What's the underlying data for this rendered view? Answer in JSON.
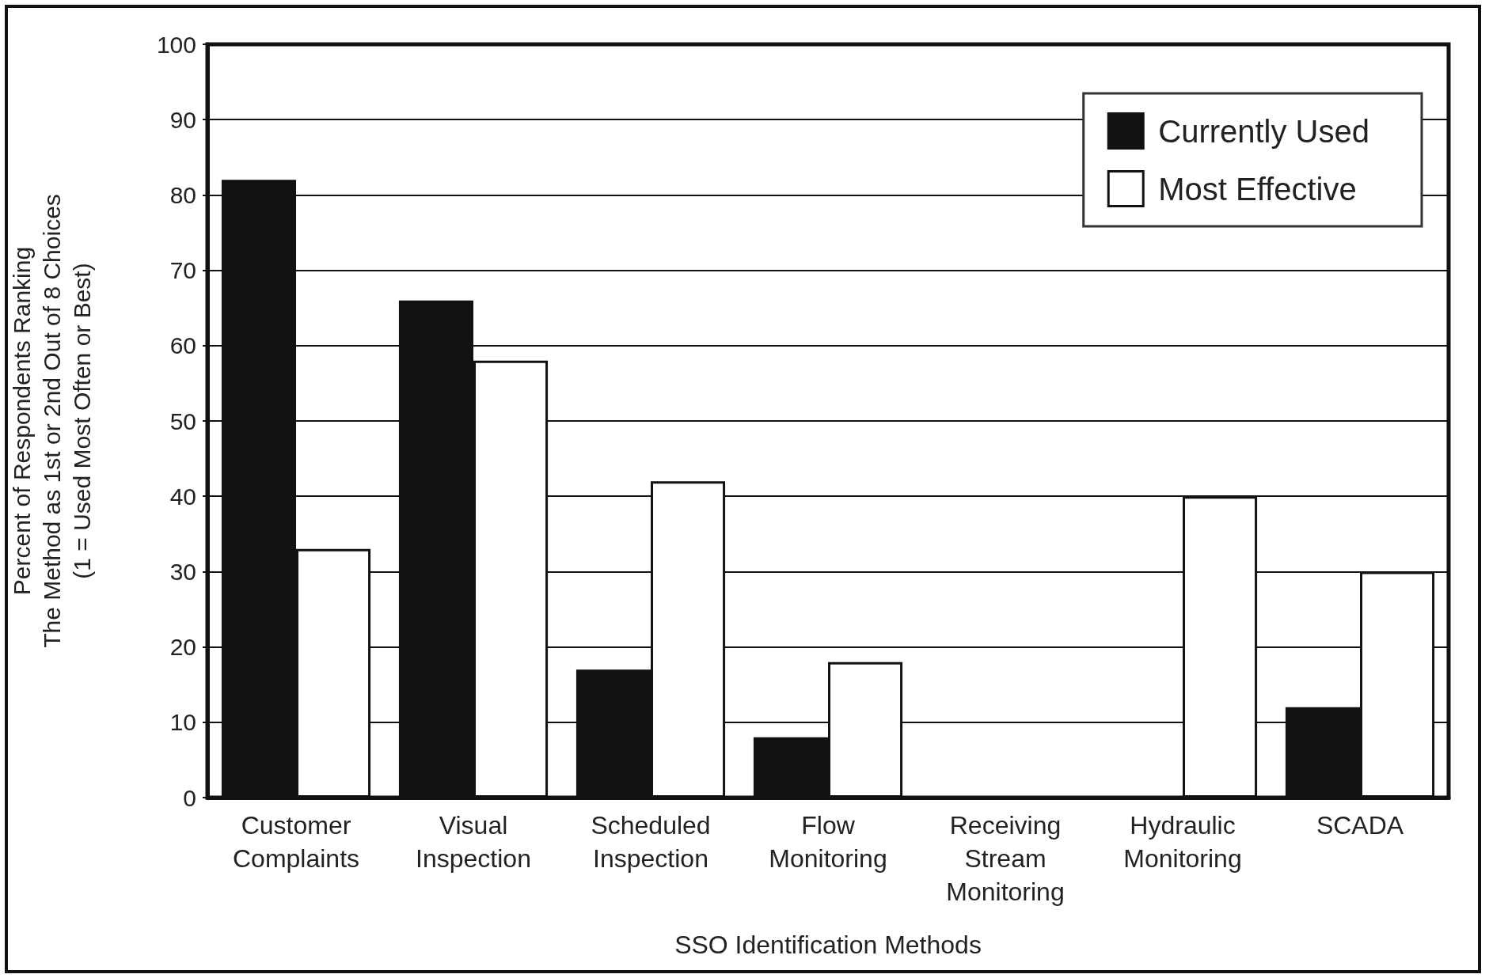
{
  "chart_data": {
    "type": "bar",
    "xlabel": "SSO Identification Methods",
    "ylabel": "Percent of Respondents Ranking\nThe Method as 1st or 2nd Out of 8 Choices\n(1 = Used Most Often or Best)",
    "categories": [
      "Customer Complaints",
      "Visual Inspection",
      "Scheduled Inspection",
      "Flow Monitoring",
      "Receiving Stream Monitoring",
      "Hydraulic Monitoring",
      "SCADA"
    ],
    "series": [
      {
        "name": "Currently Used",
        "color": "#111111",
        "values": [
          82,
          66,
          17,
          8,
          0,
          0,
          12
        ]
      },
      {
        "name": "Most Effective",
        "color": "#ffffff",
        "values": [
          33,
          58,
          42,
          18,
          0,
          40,
          30
        ]
      }
    ],
    "ylim": [
      0,
      100
    ],
    "yticks": [
      0,
      10,
      20,
      30,
      40,
      50,
      60,
      70,
      80,
      90,
      100
    ],
    "grid": "y",
    "legend": "top right"
  }
}
